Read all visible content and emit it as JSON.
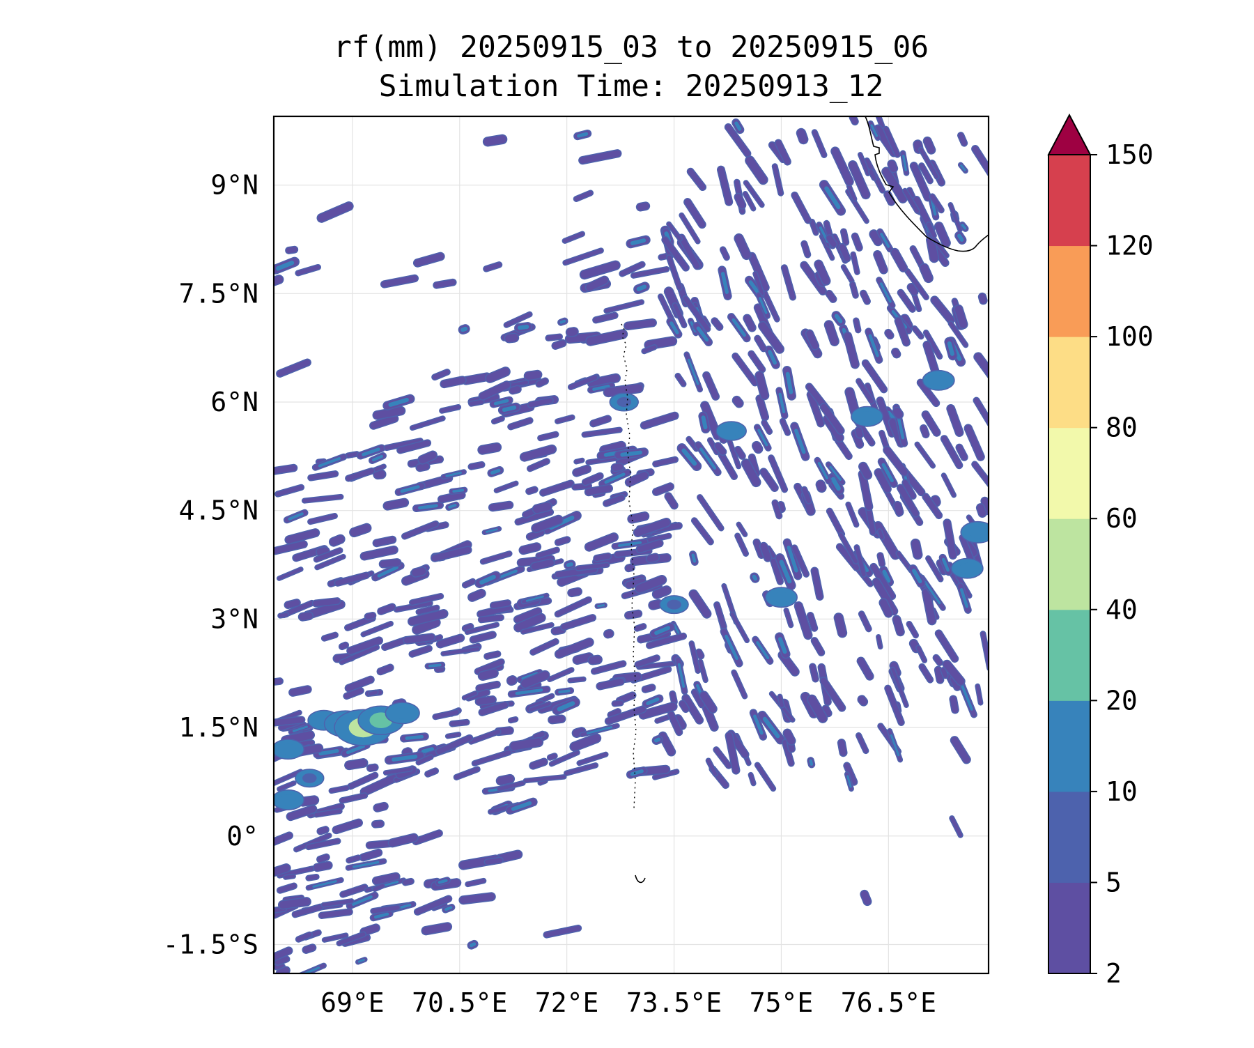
{
  "title": {
    "line1": "rf(mm) 20250915_03 to 20250915_06",
    "line2": "Simulation Time: 20250913_12"
  },
  "map": {
    "lon_range": [
      67.9,
      77.9
    ],
    "lat_range": [
      -1.9,
      9.95
    ],
    "lon_ticks": [
      {
        "value": 69.0,
        "label": "69°E"
      },
      {
        "value": 70.5,
        "label": "70.5°E"
      },
      {
        "value": 72.0,
        "label": "72°E"
      },
      {
        "value": 73.5,
        "label": "73.5°E"
      },
      {
        "value": 75.0,
        "label": "75°E"
      },
      {
        "value": 76.5,
        "label": "76.5°E"
      }
    ],
    "lat_ticks": [
      {
        "value": 9.0,
        "label": "9°N"
      },
      {
        "value": 7.5,
        "label": "7.5°N"
      },
      {
        "value": 6.0,
        "label": "6°N"
      },
      {
        "value": 4.5,
        "label": "4.5°N"
      },
      {
        "value": 3.0,
        "label": "3°N"
      },
      {
        "value": 1.5,
        "label": "1.5°N"
      },
      {
        "value": 0.0,
        "label": "0°"
      },
      {
        "value": -1.5,
        "label": "-1.5°S"
      }
    ],
    "gridlines": true,
    "field": "rainfall accumulation (mm), 3-hour"
  },
  "colorbar": {
    "levels": [
      2,
      5,
      10,
      20,
      40,
      60,
      80,
      100,
      120,
      150
    ],
    "labels": [
      "2",
      "5",
      "10",
      "20",
      "40",
      "60",
      "80",
      "100",
      "120",
      "150"
    ],
    "colors": [
      "#5e4fa2",
      "#4d62ad",
      "#3783bb",
      "#66c2a5",
      "#bde4a0",
      "#f2f9ab",
      "#fddd86",
      "#f99c57",
      "#d6404e"
    ],
    "extend_color": "#9e0142",
    "extend": "max",
    "orientation": "vertical"
  },
  "rain_style": {
    "base_color": "#5e4fa2",
    "edge_color": "#4d62ad",
    "moderate_color": "#3783bb",
    "heavy_color": "#66c2a5",
    "peak_color": "#bde4a0"
  },
  "rain_cells": [
    {
      "lon": 68.6,
      "lat": 1.6,
      "rain": 12
    },
    {
      "lon": 68.9,
      "lat": 1.55,
      "rain": 25
    },
    {
      "lon": 69.15,
      "lat": 1.5,
      "rain": 45
    },
    {
      "lon": 69.4,
      "lat": 1.6,
      "rain": 30
    },
    {
      "lon": 69.7,
      "lat": 1.7,
      "rain": 15
    },
    {
      "lon": 68.1,
      "lat": 1.2,
      "rain": 12
    },
    {
      "lon": 68.1,
      "lat": 0.5,
      "rain": 12
    },
    {
      "lon": 68.4,
      "lat": 0.8,
      "rain": 8
    },
    {
      "lon": 76.2,
      "lat": 5.8,
      "rain": 12
    },
    {
      "lon": 77.2,
      "lat": 6.3,
      "rain": 12
    },
    {
      "lon": 77.75,
      "lat": 4.2,
      "rain": 15
    },
    {
      "lon": 77.6,
      "lat": 3.7,
      "rain": 12
    },
    {
      "lon": 75.0,
      "lat": 3.3,
      "rain": 12
    },
    {
      "lon": 73.5,
      "lat": 3.2,
      "rain": 8
    },
    {
      "lon": 74.3,
      "lat": 5.6,
      "rain": 10
    },
    {
      "lon": 72.8,
      "lat": 6.0,
      "rain": 8
    }
  ]
}
